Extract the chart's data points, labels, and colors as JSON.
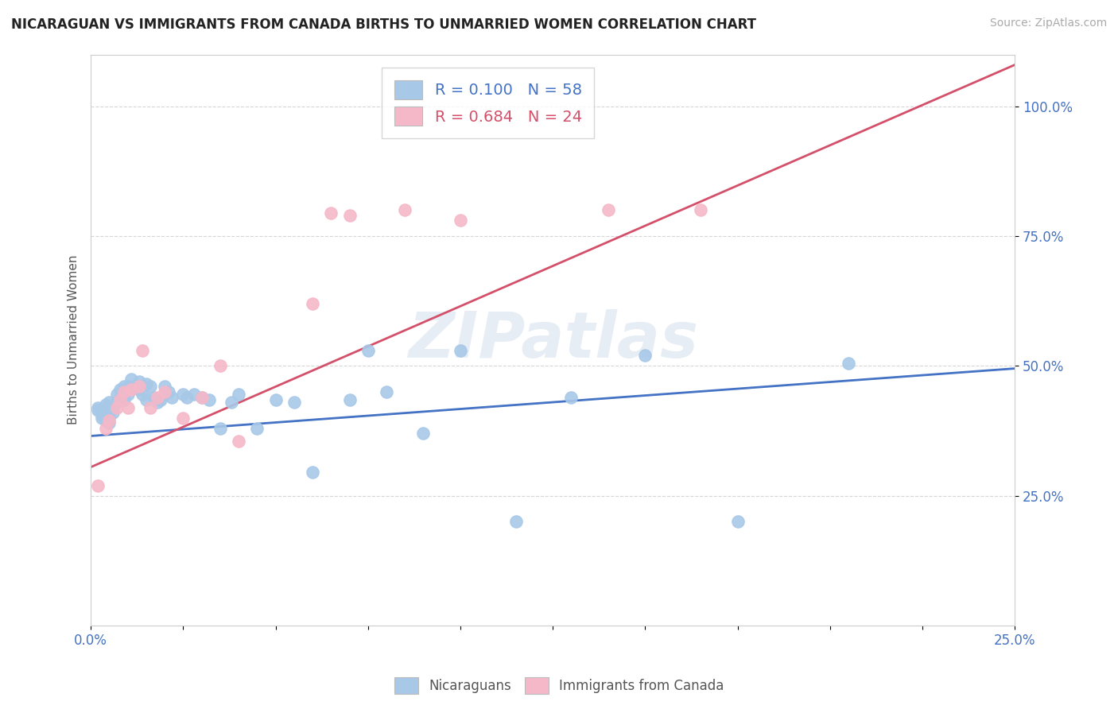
{
  "title": "NICARAGUAN VS IMMIGRANTS FROM CANADA BIRTHS TO UNMARRIED WOMEN CORRELATION CHART",
  "source": "Source: ZipAtlas.com",
  "ylabel": "Births to Unmarried Women",
  "xlim": [
    0.0,
    0.25
  ],
  "ylim": [
    0.0,
    1.1
  ],
  "ytick_values": [
    0.25,
    0.5,
    0.75,
    1.0
  ],
  "xtick_values": [
    0.0,
    0.025,
    0.05,
    0.075,
    0.1,
    0.125,
    0.15,
    0.175,
    0.2,
    0.225,
    0.25
  ],
  "nicaraguan_color": "#a8c8e8",
  "canada_color": "#f5b8c8",
  "nicaraguan_line_color": "#4472c4",
  "canada_line_color": "#d4506a",
  "background_color": "#ffffff",
  "watermark_text": "ZIPatlas",
  "R_nicaraguan": 0.1,
  "N_nicaraguan": 58,
  "R_canada": 0.684,
  "N_canada": 24,
  "nicaraguan_x": [
    0.002,
    0.002,
    0.003,
    0.003,
    0.003,
    0.004,
    0.004,
    0.004,
    0.005,
    0.005,
    0.005,
    0.005,
    0.006,
    0.007,
    0.007,
    0.008,
    0.008,
    0.009,
    0.009,
    0.01,
    0.01,
    0.011,
    0.012,
    0.013,
    0.013,
    0.014,
    0.015,
    0.015,
    0.016,
    0.017,
    0.018,
    0.019,
    0.02,
    0.02,
    0.021,
    0.022,
    0.025,
    0.026,
    0.028,
    0.03,
    0.032,
    0.035,
    0.038,
    0.04,
    0.045,
    0.05,
    0.055,
    0.06,
    0.07,
    0.075,
    0.08,
    0.09,
    0.1,
    0.115,
    0.13,
    0.15,
    0.175,
    0.205
  ],
  "nicaraguan_y": [
    0.415,
    0.42,
    0.4,
    0.405,
    0.415,
    0.395,
    0.405,
    0.425,
    0.39,
    0.4,
    0.415,
    0.43,
    0.41,
    0.43,
    0.445,
    0.44,
    0.455,
    0.435,
    0.46,
    0.445,
    0.46,
    0.475,
    0.46,
    0.455,
    0.47,
    0.445,
    0.435,
    0.465,
    0.46,
    0.44,
    0.43,
    0.435,
    0.445,
    0.46,
    0.45,
    0.44,
    0.445,
    0.44,
    0.445,
    0.44,
    0.435,
    0.38,
    0.43,
    0.445,
    0.38,
    0.435,
    0.43,
    0.295,
    0.435,
    0.53,
    0.45,
    0.37,
    0.53,
    0.2,
    0.44,
    0.52,
    0.2,
    0.505
  ],
  "canada_x": [
    0.002,
    0.004,
    0.005,
    0.007,
    0.008,
    0.009,
    0.01,
    0.011,
    0.013,
    0.014,
    0.016,
    0.018,
    0.02,
    0.025,
    0.03,
    0.035,
    0.04,
    0.06,
    0.065,
    0.07,
    0.085,
    0.1,
    0.14,
    0.165
  ],
  "canada_y": [
    0.27,
    0.38,
    0.395,
    0.42,
    0.435,
    0.45,
    0.42,
    0.455,
    0.46,
    0.53,
    0.42,
    0.44,
    0.45,
    0.4,
    0.44,
    0.5,
    0.355,
    0.62,
    0.795,
    0.79,
    0.8,
    0.78,
    0.8,
    0.8
  ],
  "trend_blue_x0": 0.0,
  "trend_blue_y0": 0.365,
  "trend_blue_x1": 0.25,
  "trend_blue_y1": 0.495,
  "trend_pink_x0": 0.0,
  "trend_pink_y0": 0.305,
  "trend_pink_x1": 0.25,
  "trend_pink_y1": 1.08
}
